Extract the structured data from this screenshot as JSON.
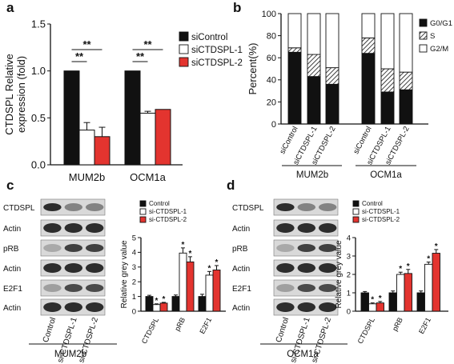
{
  "panels": {
    "a": "a",
    "b": "b",
    "c": "c",
    "d": "d"
  },
  "colors": {
    "control": "#111111",
    "si1": "#ffffff",
    "si2": "#e3342f",
    "g2m": "#ffffff"
  },
  "chart_data": [
    {
      "id": "a",
      "type": "bar",
      "ylabel": "CTDSPL Relative\nexpression (fold)",
      "ylim": [
        0,
        1.5
      ],
      "yticks": [
        "0.0",
        "0.5",
        "1.0",
        "1.5"
      ],
      "categories": [
        "MUM2b",
        "OCM1a"
      ],
      "series": [
        {
          "name": "siControl",
          "values": [
            1.0,
            1.0
          ],
          "err": [
            0,
            0
          ]
        },
        {
          "name": "siCTDSPL-1",
          "values": [
            0.37,
            0.55
          ],
          "err": [
            0.08,
            0.02
          ]
        },
        {
          "name": "siCTDSPL-2",
          "values": [
            0.3,
            0.59
          ],
          "err": [
            0.1,
            0
          ]
        }
      ],
      "significance": [
        "**",
        "**",
        "**",
        "**"
      ],
      "legend": "top-right"
    },
    {
      "id": "b",
      "type": "bar",
      "ylabel": "Percent(%)",
      "ylim": [
        0,
        100
      ],
      "yticks": [
        "0",
        "20",
        "40",
        "60",
        "80",
        "100"
      ],
      "categories": [
        "siControl",
        "siCTDSPL-1",
        "siCTDSPL-2",
        "siControl",
        "siCTDSPL-1",
        "siCTDSPL-2"
      ],
      "groups": [
        "MUM2b",
        "OCM1a"
      ],
      "series": [
        {
          "name": "G0/G1",
          "values": [
            65,
            43,
            36,
            64,
            29,
            31
          ]
        },
        {
          "name": "S",
          "values": [
            4,
            20,
            15,
            14,
            21,
            16
          ]
        },
        {
          "name": "G2/M",
          "values": [
            31,
            37,
            49,
            22,
            50,
            53
          ]
        }
      ],
      "legend": "top-right"
    },
    {
      "id": "c",
      "type": "bar",
      "cell_line": "MUM2b",
      "blot_rows": [
        "CTDSPL",
        "Actin",
        "pRB",
        "Actin",
        "E2F1",
        "Actin"
      ],
      "lanes": [
        "Control",
        "si-CTDSPL-1",
        "si-CTDSPL-2"
      ],
      "ylabel": "Relative grey value",
      "ylim": [
        0,
        5
      ],
      "yticks": [
        "0",
        "1",
        "2",
        "3",
        "4",
        "5"
      ],
      "categories": [
        "CTDSPL",
        "pRB",
        "E2F1"
      ],
      "series": [
        {
          "name": "Control",
          "values": [
            1.0,
            1.0,
            1.0
          ],
          "err": [
            0.08,
            0.1,
            0.15
          ]
        },
        {
          "name": "si-CTDSPL-1",
          "values": [
            0.45,
            3.95,
            2.45
          ],
          "err": [
            0.05,
            0.35,
            0.25
          ]
        },
        {
          "name": "si-CTDSPL-2",
          "values": [
            0.55,
            3.35,
            2.8
          ],
          "err": [
            0.05,
            0.35,
            0.3
          ]
        }
      ],
      "significance": [
        "*",
        "*",
        "*",
        "*",
        "*",
        "*"
      ]
    },
    {
      "id": "d",
      "type": "bar",
      "cell_line": "OCM1a",
      "blot_rows": [
        "CTDSPL",
        "Actin",
        "pRB",
        "Actin",
        "E2F1",
        "Actin"
      ],
      "lanes": [
        "Control",
        "si-CTDSPL-1",
        "si-CTDSPL-2"
      ],
      "ylabel": "Relative grey value",
      "ylim": [
        0,
        4
      ],
      "yticks": [
        "0",
        "1",
        "2",
        "3",
        "4"
      ],
      "categories": [
        "CTDSPL",
        "pRB",
        "E2F1"
      ],
      "series": [
        {
          "name": "Control",
          "values": [
            1.0,
            1.0,
            1.0
          ],
          "err": [
            0.07,
            0.1,
            0.1
          ]
        },
        {
          "name": "si-CTDSPL-1",
          "values": [
            0.4,
            2.0,
            2.55
          ],
          "err": [
            0.05,
            0.12,
            0.12
          ]
        },
        {
          "name": "si-CTDSPL-2",
          "values": [
            0.45,
            2.05,
            3.15
          ],
          "err": [
            0.08,
            0.22,
            0.2
          ]
        }
      ],
      "significance": [
        "*",
        "*",
        "*",
        "*",
        "*",
        "*"
      ]
    }
  ]
}
